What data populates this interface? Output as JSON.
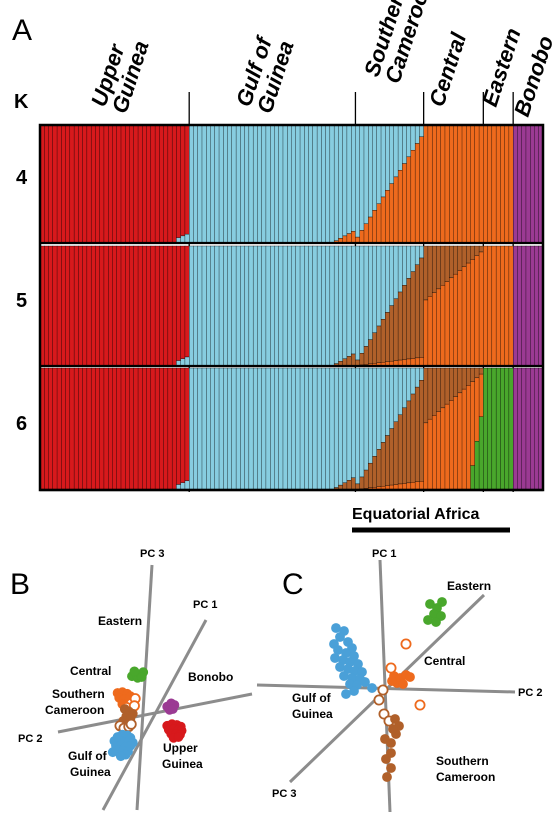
{
  "colors": {
    "upper_guinea": "#d7191c",
    "gulf_of_guinea": "#87cde0",
    "southern_cameroon": "#b0602a",
    "central": "#ee6a1d",
    "eastern": "#49a72c",
    "bonobo": "#9b3a93",
    "pca_axis": "#8c8c8c"
  },
  "panels": {
    "a": "A",
    "b": "B",
    "c": "C"
  },
  "k_header": "K",
  "k_values": [
    "4",
    "5",
    "6"
  ],
  "populations": [
    {
      "id": "upper_guinea",
      "lines": [
        "Upper",
        "Guinea"
      ],
      "n": 35
    },
    {
      "id": "gulf_of_guinea",
      "lines": [
        "Gulf of",
        "Guinea"
      ],
      "n": 39
    },
    {
      "id": "southern_cameroon",
      "lines": [
        "Southern",
        "Cameroon"
      ],
      "n": 16
    },
    {
      "id": "central",
      "lines": [
        "Central"
      ],
      "n": 14
    },
    {
      "id": "eastern",
      "lines": [
        "Eastern"
      ],
      "n": 7
    },
    {
      "id": "bonobo",
      "lines": [
        "Bonobo"
      ],
      "n": 7
    }
  ],
  "equatorial_label": "Equatorial Africa",
  "chart_data": [
    {
      "type": "bar",
      "subtype": "stacked-admixture",
      "panel": "A",
      "ylabel": "K",
      "ylim": [
        0,
        1
      ],
      "rows": [
        {
          "K": 4,
          "components": [
            "upper_guinea",
            "gulf_of_guinea",
            "central",
            "bonobo"
          ]
        },
        {
          "K": 5,
          "components": [
            "upper_guinea",
            "gulf_of_guinea",
            "southern_cameroon",
            "central",
            "bonobo"
          ]
        },
        {
          "K": 6,
          "components": [
            "upper_guinea",
            "gulf_of_guinea",
            "southern_cameroon",
            "central",
            "eastern",
            "bonobo"
          ]
        }
      ]
    },
    {
      "type": "scatter",
      "panel": "B",
      "axes": [
        "PC 1",
        "PC 2",
        "PC 3"
      ],
      "series": [
        {
          "name": "Eastern",
          "color": "#49a72c",
          "filled": true,
          "points": [
            [
              0.0,
              -1.8
            ],
            [
              0.25,
              -1.95
            ],
            [
              0.5,
              -1.9
            ],
            [
              0.7,
              -2.05
            ],
            [
              0.35,
              -1.7
            ],
            [
              0.6,
              -1.75
            ],
            [
              0.15,
              -2.1
            ]
          ]
        },
        {
          "name": "Central",
          "color": "#ee6a1d",
          "filled": true,
          "points": [
            [
              -0.9,
              -0.75
            ],
            [
              -0.6,
              -0.8
            ],
            [
              -0.3,
              -0.7
            ],
            [
              -0.1,
              -0.55
            ],
            [
              -0.8,
              -0.45
            ],
            [
              -0.5,
              -0.35
            ],
            [
              -0.2,
              -0.3
            ],
            [
              -0.6,
              -0.05
            ]
          ]
        },
        {
          "name": "Central",
          "color": "#ee6a1d",
          "filled": false,
          "points": [
            [
              -0.05,
              -0.1
            ],
            [
              0.2,
              -0.4
            ],
            [
              -0.35,
              0.15
            ],
            [
              0.15,
              0.05
            ]
          ]
        },
        {
          "name": "Southern Cameroon",
          "color": "#b0602a",
          "filled": true,
          "points": [
            [
              -0.45,
              0.25
            ],
            [
              -0.2,
              0.4
            ],
            [
              0.05,
              0.55
            ],
            [
              -0.35,
              0.7
            ],
            [
              -0.1,
              0.85
            ],
            [
              -0.55,
              1.0
            ],
            [
              -0.25,
              1.15
            ]
          ]
        },
        {
          "name": "Southern Cameroon",
          "color": "#b0602a",
          "filled": false,
          "points": [
            [
              -0.75,
              1.3
            ],
            [
              -0.5,
              1.45
            ],
            [
              -0.2,
              1.35
            ],
            [
              -0.05,
              1.2
            ]
          ]
        },
        {
          "name": "Gulf of Guinea",
          "color": "#4aa0d8",
          "filled": true,
          "points": [
            [
              -0.9,
              2.0
            ],
            [
              -0.6,
              1.85
            ],
            [
              -0.3,
              1.9
            ],
            [
              -0.1,
              2.05
            ],
            [
              -1.1,
              2.25
            ],
            [
              -0.8,
              2.2
            ],
            [
              -0.5,
              2.3
            ],
            [
              -0.2,
              2.25
            ],
            [
              0.05,
              2.35
            ],
            [
              -1.0,
              2.55
            ],
            [
              -0.7,
              2.5
            ],
            [
              -0.4,
              2.6
            ],
            [
              -0.1,
              2.55
            ],
            [
              -0.85,
              2.8
            ],
            [
              -0.55,
              2.85
            ],
            [
              -0.25,
              2.9
            ],
            [
              -1.2,
              2.95
            ],
            [
              -0.4,
              3.1
            ],
            [
              -0.7,
              3.2
            ]
          ]
        },
        {
          "name": "Bonobo",
          "color": "#9b3a93",
          "filled": true,
          "points": [
            [
              2.2,
              0.1
            ],
            [
              2.45,
              -0.1
            ],
            [
              2.65,
              0.0
            ],
            [
              2.35,
              0.3
            ],
            [
              2.55,
              0.25
            ]
          ]
        },
        {
          "name": "Upper Guinea",
          "color": "#d7191c",
          "filled": true,
          "points": [
            [
              2.2,
              1.3
            ],
            [
              2.5,
              1.2
            ],
            [
              2.8,
              1.25
            ],
            [
              3.05,
              1.35
            ],
            [
              2.3,
              1.55
            ],
            [
              2.6,
              1.5
            ],
            [
              2.9,
              1.55
            ],
            [
              3.1,
              1.6
            ],
            [
              2.45,
              1.8
            ],
            [
              2.75,
              1.8
            ],
            [
              3.0,
              1.85
            ],
            [
              2.6,
              2.05
            ],
            [
              2.9,
              2.0
            ]
          ]
        }
      ]
    },
    {
      "type": "scatter",
      "panel": "C",
      "axes": [
        "PC 1",
        "PC 2",
        "PC 3"
      ],
      "series": [
        {
          "name": "Eastern",
          "color": "#49a72c",
          "filled": true,
          "points": [
            [
              2.5,
              -4.2
            ],
            [
              2.85,
              -4.0
            ],
            [
              3.1,
              -4.3
            ],
            [
              2.7,
              -3.7
            ],
            [
              3.05,
              -3.6
            ],
            [
              2.4,
              -3.4
            ],
            [
              2.8,
              -3.3
            ]
          ]
        },
        {
          "name": "Central",
          "color": "#ee6a1d",
          "filled": true,
          "points": [
            [
              0.7,
              -0.6
            ],
            [
              1.0,
              -0.5
            ],
            [
              1.3,
              -0.65
            ],
            [
              0.85,
              -0.25
            ],
            [
              1.15,
              -0.2
            ],
            [
              1.5,
              -0.55
            ],
            [
              0.6,
              -0.35
            ]
          ]
        },
        {
          "name": "Central",
          "color": "#ee6a1d",
          "filled": false,
          "points": [
            [
              1.3,
              -2.2
            ],
            [
              0.55,
              -1.0
            ],
            [
              2.0,
              0.85
            ]
          ]
        },
        {
          "name": "Gulf of Guinea",
          "color": "#4aa0d8",
          "filled": true,
          "points": [
            [
              -2.2,
              -3.0
            ],
            [
              -1.8,
              -2.85
            ],
            [
              -2.0,
              -2.55
            ],
            [
              -1.6,
              -2.3
            ],
            [
              -2.3,
              -2.2
            ],
            [
              -1.4,
              -2.0
            ],
            [
              -2.1,
              -1.9
            ],
            [
              -1.7,
              -1.75
            ],
            [
              -1.3,
              -1.6
            ],
            [
              -2.25,
              -1.5
            ],
            [
              -1.85,
              -1.4
            ],
            [
              -1.5,
              -1.3
            ],
            [
              -1.1,
              -1.2
            ],
            [
              -2.0,
              -1.05
            ],
            [
              -1.6,
              -0.95
            ],
            [
              -1.25,
              -0.85
            ],
            [
              -0.9,
              -0.8
            ],
            [
              -1.8,
              -0.6
            ],
            [
              -1.4,
              -0.5
            ],
            [
              -1.0,
              -0.45
            ],
            [
              -1.5,
              -0.2
            ],
            [
              -1.15,
              -0.15
            ],
            [
              -0.75,
              -0.3
            ],
            [
              -1.3,
              0.15
            ],
            [
              -1.7,
              0.3
            ],
            [
              -0.4,
              0.0
            ]
          ]
        },
        {
          "name": "Southern Cameroon",
          "color": "#b0602a",
          "filled": false,
          "points": [
            [
              0.15,
              0.1
            ],
            [
              -0.05,
              0.6
            ],
            [
              0.2,
              1.3
            ],
            [
              0.45,
              1.65
            ]
          ]
        },
        {
          "name": "Southern Cameroon",
          "color": "#b0602a",
          "filled": true,
          "points": [
            [
              0.75,
              1.55
            ],
            [
              0.95,
              1.9
            ],
            [
              0.8,
              2.3
            ],
            [
              0.55,
              2.75
            ],
            [
              0.25,
              2.55
            ],
            [
              0.55,
              3.25
            ],
            [
              0.3,
              3.55
            ],
            [
              0.55,
              4.0
            ],
            [
              0.35,
              4.45
            ],
            [
              0.65,
              2.05
            ]
          ]
        }
      ],
      "labels": [
        "Eastern",
        "Central",
        "Gulf of Guinea",
        "Southern Cameroon"
      ]
    }
  ],
  "pca_b": {
    "axes": [
      {
        "name": "PC 1",
        "label": "PC 1"
      },
      {
        "name": "PC 2",
        "label": "PC 2"
      },
      {
        "name": "PC 3",
        "label": "PC 3"
      }
    ],
    "labels": {
      "eastern": "Eastern",
      "central": "Central",
      "southern_cameroon": [
        "Southern",
        "Cameroon"
      ],
      "bonobo": "Bonobo",
      "gulf_of_guinea": [
        "Gulf of",
        "Guinea"
      ],
      "upper_guinea": [
        "Upper",
        "Guinea"
      ]
    }
  },
  "pca_c": {
    "axes": [
      {
        "name": "PC 1",
        "label": "PC 1"
      },
      {
        "name": "PC 2",
        "label": "PC 2"
      },
      {
        "name": "PC 3",
        "label": "PC 3"
      }
    ],
    "labels": {
      "eastern": "Eastern",
      "central": "Central",
      "gulf_of_guinea": [
        "Gulf of",
        "Guinea"
      ],
      "southern_cameroon": [
        "Southern",
        "Cameroon"
      ]
    }
  }
}
